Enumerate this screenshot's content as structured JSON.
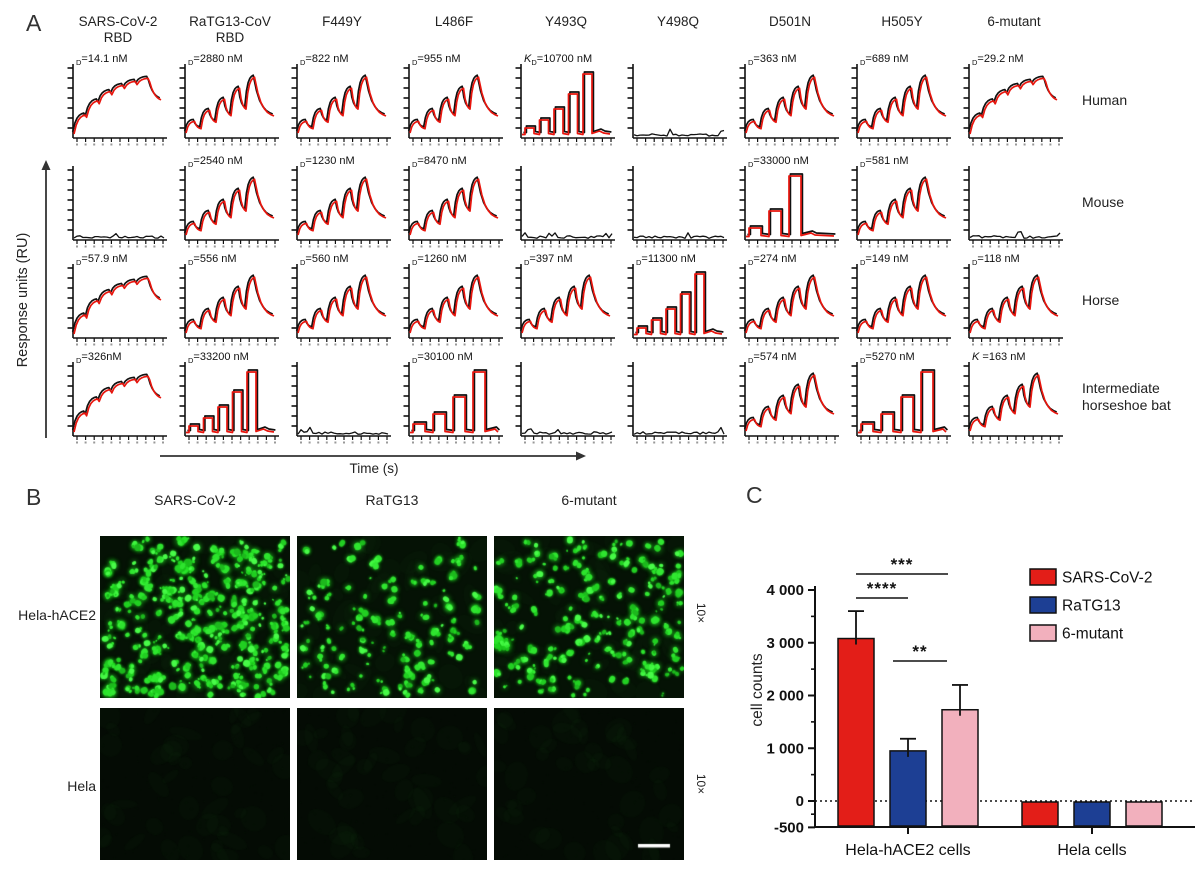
{
  "panelA": {
    "label": "A",
    "y_axis_label": "Response units (RU)",
    "x_axis_label": "Time (s)",
    "trace_colors": {
      "fit": "#e8150d",
      "data": "#111111"
    },
    "col_headers": [
      [
        "SARS-CoV-2",
        "RBD"
      ],
      [
        "RaTG13-CoV",
        "RBD"
      ],
      [
        "F449Y"
      ],
      [
        "L486F"
      ],
      [
        "Y493Q"
      ],
      [
        "Y498Q"
      ],
      [
        "D501N"
      ],
      [
        "H505Y"
      ],
      [
        "6-mutant"
      ]
    ],
    "row_labels": [
      [
        "Human"
      ],
      [
        "Mouse"
      ],
      [
        "Horse"
      ],
      [
        "Intermediate",
        "horseshoe bat"
      ]
    ],
    "cells": [
      {
        "pre": "",
        "sub": "D",
        "val": "=14.1 nM",
        "curve": "slow"
      },
      {
        "pre": "",
        "sub": "D",
        "val": "=2880 nM",
        "curve": "fast"
      },
      {
        "pre": "",
        "sub": "D",
        "val": "=822 nM",
        "curve": "fast"
      },
      {
        "pre": "",
        "sub": "D",
        "val": "=955 nM",
        "curve": "fast"
      },
      {
        "pre": "K",
        "sub": "D",
        "val": "=10700 nM",
        "curve": "square5"
      },
      {
        "pre": "",
        "sub": "",
        "val": "",
        "curve": "flat"
      },
      {
        "pre": "",
        "sub": "D",
        "val": "=363 nM",
        "curve": "fast"
      },
      {
        "pre": "",
        "sub": "D",
        "val": "=689 nM",
        "curve": "fast"
      },
      {
        "pre": "",
        "sub": "D",
        "val": "=29.2 nM",
        "curve": "slow"
      },
      {
        "pre": "",
        "sub": "",
        "val": "",
        "curve": "flat"
      },
      {
        "pre": "",
        "sub": "D",
        "val": "=2540 nM",
        "curve": "fast"
      },
      {
        "pre": "",
        "sub": "D",
        "val": "=1230 nM",
        "curve": "fast"
      },
      {
        "pre": "",
        "sub": "D",
        "val": "=8470 nM",
        "curve": "fast"
      },
      {
        "pre": "",
        "sub": "",
        "val": "",
        "curve": "flat"
      },
      {
        "pre": "",
        "sub": "",
        "val": "",
        "curve": "flat"
      },
      {
        "pre": "",
        "sub": "D",
        "val": "=33000 nM",
        "curve": "square3"
      },
      {
        "pre": "",
        "sub": "D",
        "val": "=581 nM",
        "curve": "fast"
      },
      {
        "pre": "",
        "sub": "",
        "val": "",
        "curve": "flat"
      },
      {
        "pre": "",
        "sub": "D",
        "val": "=57.9 nM",
        "curve": "slow"
      },
      {
        "pre": "",
        "sub": "D",
        "val": "=556 nM",
        "curve": "fast"
      },
      {
        "pre": "",
        "sub": "D",
        "val": "=560 nM",
        "curve": "fast"
      },
      {
        "pre": "",
        "sub": "D",
        "val": "=1260 nM",
        "curve": "fast"
      },
      {
        "pre": "",
        "sub": "D",
        "val": "=397 nM",
        "curve": "fast"
      },
      {
        "pre": "",
        "sub": "D",
        "val": "=11300 nM",
        "curve": "square5"
      },
      {
        "pre": "",
        "sub": "D",
        "val": "=274 nM",
        "curve": "fast"
      },
      {
        "pre": "",
        "sub": "D",
        "val": "=149 nM",
        "curve": "fast"
      },
      {
        "pre": "",
        "sub": "D",
        "val": "=118 nM",
        "curve": "fast"
      },
      {
        "pre": "",
        "sub": "D",
        "val": "=326nM",
        "curve": "slow"
      },
      {
        "pre": "",
        "sub": "D",
        "val": "=33200 nM",
        "curve": "square5"
      },
      {
        "pre": "",
        "sub": "",
        "val": "",
        "curve": "flat"
      },
      {
        "pre": "",
        "sub": "D",
        "val": "=30100 nM",
        "curve": "square4"
      },
      {
        "pre": "",
        "sub": "",
        "val": "",
        "curve": "flat"
      },
      {
        "pre": "",
        "sub": "",
        "val": "",
        "curve": "flat"
      },
      {
        "pre": "",
        "sub": "D",
        "val": "=574 nM",
        "curve": "fast"
      },
      {
        "pre": "",
        "sub": "D",
        "val": "=5270 nM",
        "curve": "square4"
      },
      {
        "pre": "K",
        "sub": "",
        "val": " =163 nM",
        "curve": "fast"
      }
    ]
  },
  "panelB": {
    "label": "B",
    "col_headers": [
      "SARS-CoV-2",
      "RaTG13",
      "6-mutant"
    ],
    "row_labels": [
      "Hela-hACE2",
      "Hela"
    ],
    "magnification": "10×",
    "cell_density": [
      [
        330,
        120,
        185
      ],
      [
        0,
        0,
        0
      ]
    ],
    "dot_color": "#2fe42f",
    "bg_color_top": "#051205",
    "bg_color_bottom": "#040b04"
  },
  "panelC": {
    "label": "C",
    "chart_data": {
      "type": "bar",
      "title": "",
      "xlabel": "",
      "ylabel": "cell counts",
      "categories": [
        "Hela-hACE2 cells",
        "Hela cells"
      ],
      "series": [
        {
          "name": "SARS-CoV-2",
          "color": "#e31e18",
          "values": [
            3080,
            -450
          ],
          "errors": [
            520,
            0
          ]
        },
        {
          "name": "RaTG13",
          "color": "#1d3f94",
          "values": [
            950,
            -450
          ],
          "errors": [
            230,
            0
          ]
        },
        {
          "name": "6-mutant",
          "color": "#f2b0bd",
          "values": [
            1730,
            -450
          ],
          "errors": [
            470,
            0
          ]
        }
      ],
      "ylim": [
        -500,
        4000
      ],
      "ytick_values": [
        4000,
        3000,
        2000,
        1000,
        0,
        -500
      ],
      "ytick_labels": [
        "4 000",
        "3 000",
        "2 000",
        "1 000",
        "0",
        "-500"
      ],
      "baseline": 0,
      "baseline_style": "dotted",
      "grid": false,
      "legend_position": "right",
      "significance": [
        {
          "between": [
            "SARS-CoV-2",
            "RaTG13"
          ],
          "label": "****"
        },
        {
          "between": [
            "SARS-CoV-2",
            "6-mutant"
          ],
          "label": "***"
        },
        {
          "between": [
            "RaTG13",
            "6-mutant"
          ],
          "label": "**"
        }
      ]
    }
  }
}
